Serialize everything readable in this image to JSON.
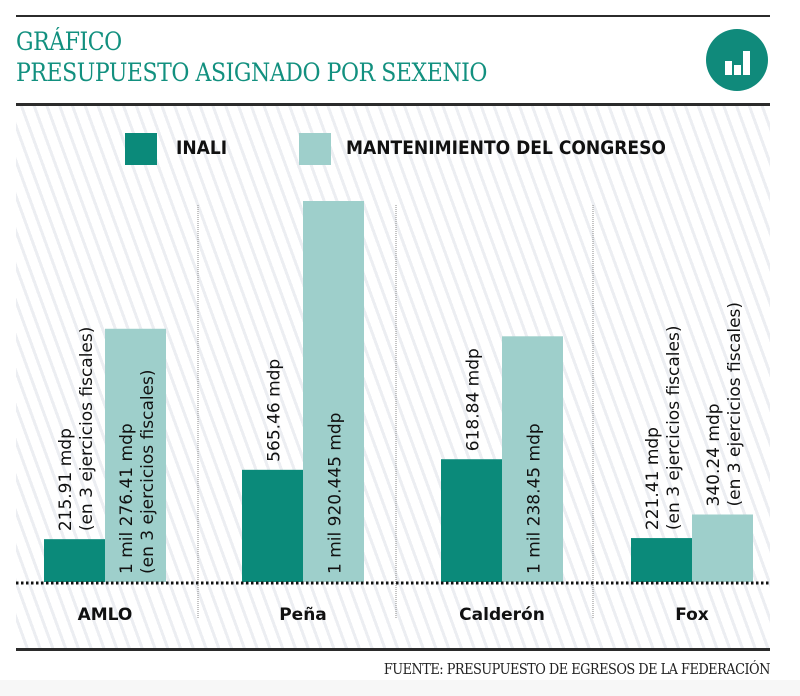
{
  "header": {
    "kicker": "GRÁFICO",
    "title": "PRESUPUESTO ASIGNADO POR SEXENIO",
    "icon": "bar-chart-icon"
  },
  "colors": {
    "accent": "#12907f",
    "inali": "#0b8a7a",
    "congreso": "#9ecfcb",
    "rule": "#2b2b2b"
  },
  "source": "FUENTE: PRESUPUESTO DE EGRESOS DE LA FEDERACIÓN",
  "chart_data": {
    "type": "bar",
    "title": "PRESUPUESTO ASIGNADO POR SEXENIO",
    "xlabel": "",
    "ylabel": "",
    "units": "mdp (millones de pesos)",
    "categories": [
      "AMLO",
      "Peña",
      "Calderón",
      "Fox"
    ],
    "legend_position": "top",
    "grid": false,
    "ylim": [
      0,
      2000
    ],
    "series": [
      {
        "name": "INALI",
        "color": "#0b8a7a",
        "values": [
          215.91,
          565.46,
          618.84,
          221.41
        ],
        "labels": [
          [
            "215.91 mdp",
            "(en 3 ejercicios fiscales)"
          ],
          [
            "565.46 mdp"
          ],
          [
            "618.84 mdp"
          ],
          [
            "221.41 mdp",
            "(en 3 ejercicios fiscales)"
          ]
        ]
      },
      {
        "name": "MANTENIMIENTO DEL CONGRESO",
        "color": "#9ecfcb",
        "values": [
          1276.41,
          1920.445,
          1238.45,
          340.24
        ],
        "labels": [
          [
            "1 mil 276.41 mdp",
            "(en 3 ejercicios fiscales)"
          ],
          [
            "1 mil 920.445 mdp"
          ],
          [
            "1 mil 238.45 mdp"
          ],
          [
            "340.24 mdp",
            "(en 3 ejercicios fiscales)"
          ]
        ]
      }
    ]
  }
}
